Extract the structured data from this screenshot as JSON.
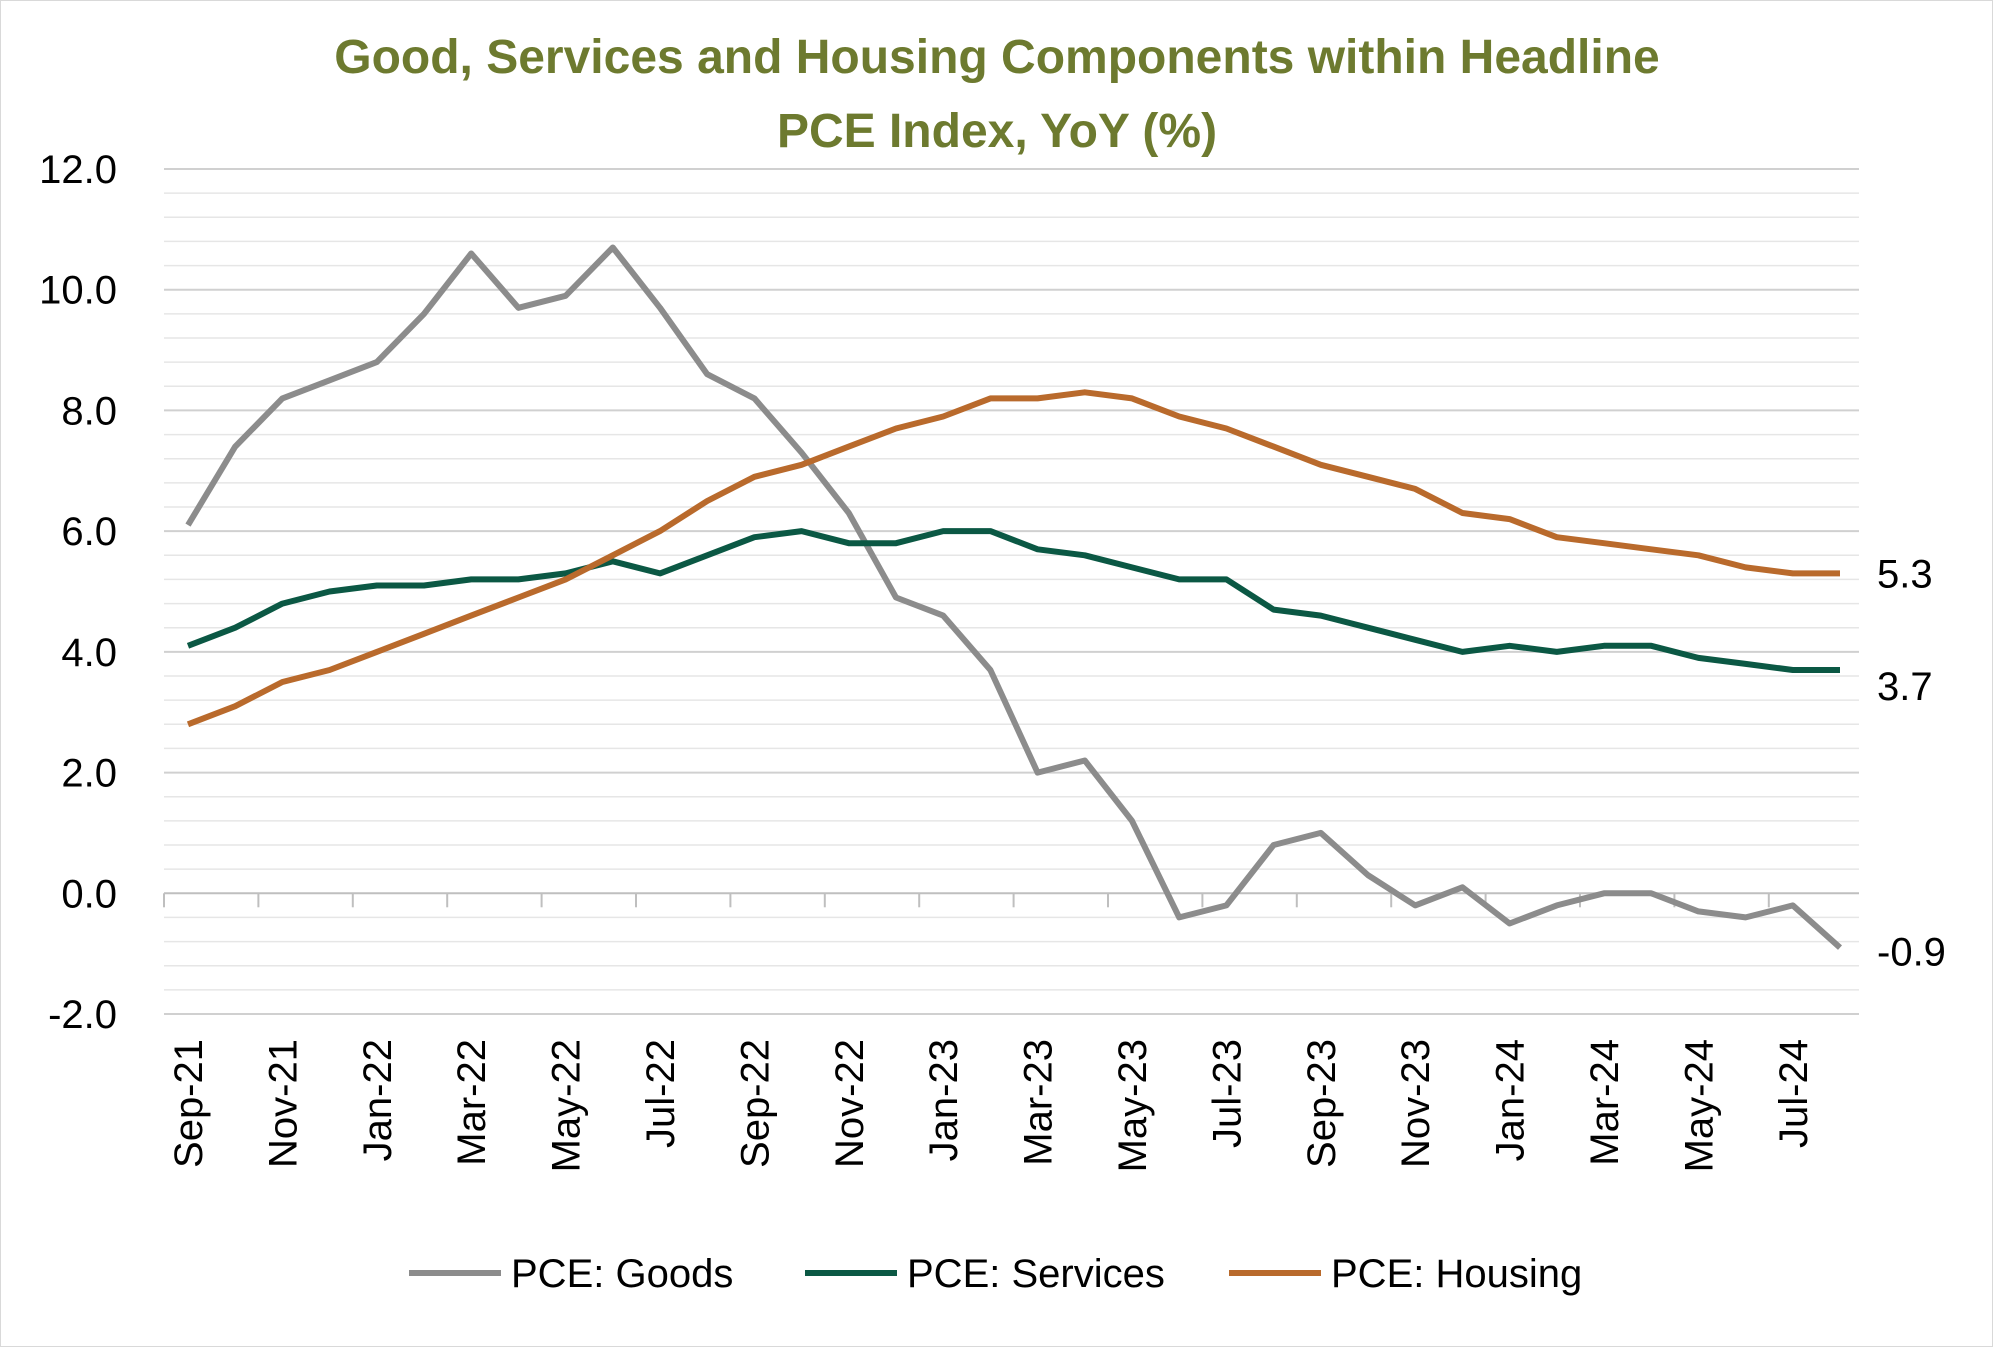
{
  "chart_data": {
    "type": "line",
    "title_lines": [
      "Good, Services and Housing Components within Headline",
      "PCE Index, YoY (%)"
    ],
    "title_color": "#6d7a2f",
    "xlabel": "",
    "ylabel": "",
    "ylim": [
      -2.0,
      12.0
    ],
    "y_ticks": [
      -2.0,
      0.0,
      2.0,
      4.0,
      6.0,
      8.0,
      10.0,
      12.0
    ],
    "y_tick_labels": [
      "-2.0",
      "0.0",
      "2.0",
      "4.0",
      "6.0",
      "8.0",
      "10.0",
      "12.0"
    ],
    "minor_grid_step": 0.4,
    "grid": true,
    "legend_position": "bottom",
    "categories": [
      "Sep-21",
      "Oct-21",
      "Nov-21",
      "Dec-21",
      "Jan-22",
      "Feb-22",
      "Mar-22",
      "Apr-22",
      "May-22",
      "Jun-22",
      "Jul-22",
      "Aug-22",
      "Sep-22",
      "Oct-22",
      "Nov-22",
      "Dec-22",
      "Jan-23",
      "Feb-23",
      "Mar-23",
      "Apr-23",
      "May-23",
      "Jun-23",
      "Jul-23",
      "Aug-23",
      "Sep-23",
      "Oct-23",
      "Nov-23",
      "Dec-23",
      "Jan-24",
      "Feb-24",
      "Mar-24",
      "Apr-24",
      "May-24",
      "Jun-24",
      "Jul-24",
      "Aug-24"
    ],
    "x_tick_labels": [
      "Sep-21",
      "Nov-21",
      "Jan-22",
      "Mar-22",
      "May-22",
      "Jul-22",
      "Sep-22",
      "Nov-22",
      "Jan-23",
      "Mar-23",
      "May-23",
      "Jul-23",
      "Sep-23",
      "Nov-23",
      "Jan-24",
      "Mar-24",
      "May-24",
      "Jul-24"
    ],
    "series": [
      {
        "name": "PCE: Goods",
        "color": "#8c8c8c",
        "values": [
          6.1,
          7.4,
          8.2,
          8.5,
          8.8,
          9.6,
          10.6,
          9.7,
          9.9,
          10.7,
          9.7,
          8.6,
          8.2,
          7.3,
          6.3,
          4.9,
          4.6,
          3.7,
          2.0,
          2.2,
          1.2,
          -0.4,
          -0.2,
          0.8,
          1.0,
          0.3,
          -0.2,
          0.1,
          -0.5,
          -0.2,
          0.0,
          0.0,
          -0.3,
          -0.4,
          -0.2,
          -0.9
        ],
        "end_label": "-0.9"
      },
      {
        "name": "PCE: Services",
        "color": "#0b5844",
        "values": [
          4.1,
          4.4,
          4.8,
          5.0,
          5.1,
          5.1,
          5.2,
          5.2,
          5.3,
          5.5,
          5.3,
          5.6,
          5.9,
          6.0,
          5.8,
          5.8,
          6.0,
          6.0,
          5.7,
          5.6,
          5.4,
          5.2,
          5.2,
          4.7,
          4.6,
          4.4,
          4.2,
          4.0,
          4.1,
          4.0,
          4.1,
          4.1,
          3.9,
          3.8,
          3.7,
          3.7
        ],
        "end_label": "3.7"
      },
      {
        "name": "PCE: Housing",
        "color": "#b96a2c",
        "values": [
          2.8,
          3.1,
          3.5,
          3.7,
          4.0,
          4.3,
          4.6,
          4.9,
          5.2,
          5.6,
          6.0,
          6.5,
          6.9,
          7.1,
          7.4,
          7.7,
          7.9,
          8.2,
          8.2,
          8.3,
          8.2,
          7.9,
          7.7,
          7.4,
          7.1,
          6.9,
          6.7,
          6.3,
          6.2,
          5.9,
          5.8,
          5.7,
          5.6,
          5.4,
          5.3,
          5.3
        ],
        "end_label": "5.3"
      }
    ]
  }
}
